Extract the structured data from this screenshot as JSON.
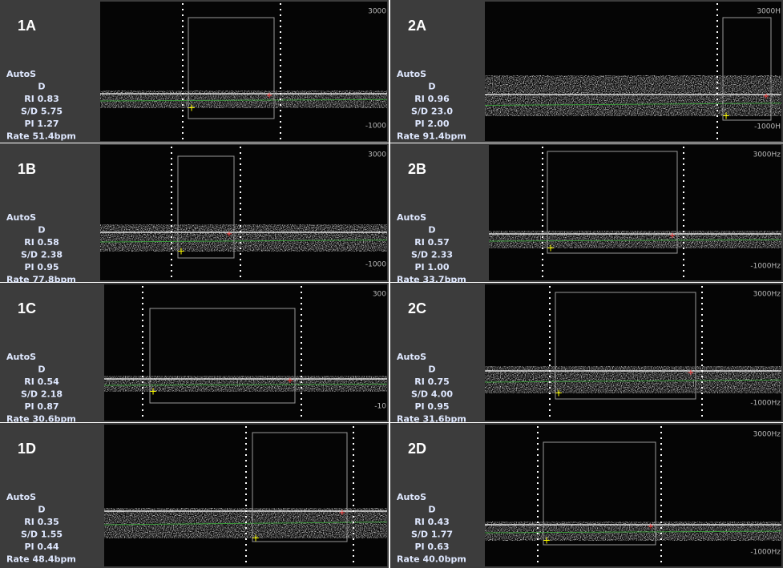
{
  "panels": [
    {
      "label": "1A",
      "lines": [
        "AutoS",
        "D",
        "RI 0.83",
        "S/D 5.75",
        "PI 1.27",
        "Rate  51.4bpm"
      ],
      "top_label": "3000",
      "bottom_label": "-1000"
    },
    {
      "label": "2A",
      "lines": [
        "AutoS",
        "D",
        "RI 0.96",
        "S/D 23.0",
        "PI 2.00",
        "Rate  91.4bpm"
      ],
      "top_label": "3000H",
      "bottom_label": "-1000H"
    },
    {
      "label": "1B",
      "lines": [
        "AutoS",
        "D",
        "RI 0.58",
        "S/D 2.38",
        "PI 0.95",
        "Rate  77.8bpm"
      ],
      "top_label": "3000",
      "bottom_label": "-1000"
    },
    {
      "label": "2B",
      "lines": [
        "AutoS",
        "D",
        "RI 0.57",
        "S/D 2.33",
        "PI 1.00",
        "Rate  33.7bpm"
      ],
      "top_label": "3000Hz",
      "bottom_label": "-1000Hz"
    },
    {
      "label": "1C",
      "lines": [
        "AutoS",
        "D",
        "RI 0.54",
        "S/D 2.18",
        "PI 0.87",
        "Rate  30.6bpm"
      ],
      "top_label": "300",
      "bottom_label": "-10"
    },
    {
      "label": "2C",
      "lines": [
        "AutoS",
        "D",
        "RI 0.75",
        "S/D 4.00",
        "PI 0.95",
        "Rate  31.6bpm"
      ],
      "top_label": "3000Hz",
      "bottom_label": "-1000Hz"
    },
    {
      "label": "1D",
      "lines": [
        "AutoS",
        "D",
        "RI 0.35",
        "S/D 1.55",
        "PI 0.44",
        "Rate  48.4bpm"
      ]
    },
    {
      "label": "2D",
      "lines": [
        "AutoS",
        "D",
        "RI 0.43",
        "S/D 1.77",
        "PI 0.63",
        "Rate  40.0bpm"
      ],
      "top_label": "3000Hz",
      "bottom_label": "-1000Hz"
    }
  ]
}
